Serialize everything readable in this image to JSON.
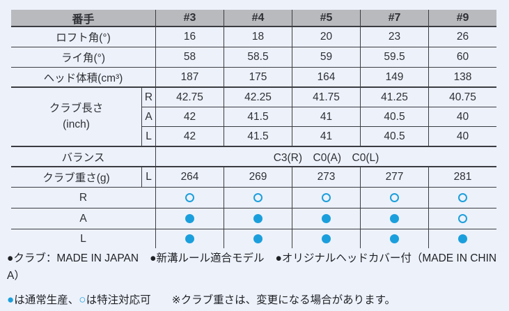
{
  "colors": {
    "page_bg": "#edf1fa",
    "header_bg": "#b9babe",
    "grid_line": "#3a3c41",
    "text": "#2e3035",
    "accent_blue": "#1b9fdc"
  },
  "table": {
    "header": {
      "label": "番手",
      "columns": [
        "#3",
        "#4",
        "#5",
        "#7",
        "#9"
      ]
    },
    "loft": {
      "label": "ロフト角(°)",
      "values": [
        "16",
        "18",
        "20",
        "23",
        "26"
      ]
    },
    "lie": {
      "label": "ライ角(°)",
      "values": [
        "58",
        "58.5",
        "59",
        "59.5",
        "60"
      ]
    },
    "head_volume": {
      "label": "ヘッド体積(cm³)",
      "values": [
        "187",
        "175",
        "164",
        "149",
        "138"
      ]
    },
    "club_length": {
      "label_line1": "クラブ長さ",
      "label_line2": "(inch)",
      "rows": [
        {
          "flex": "R",
          "values": [
            "42.75",
            "42.25",
            "41.75",
            "41.25",
            "40.75"
          ]
        },
        {
          "flex": "A",
          "values": [
            "42",
            "41.5",
            "41",
            "40.5",
            "40"
          ]
        },
        {
          "flex": "L",
          "values": [
            "42",
            "41.5",
            "41",
            "40.5",
            "40"
          ]
        }
      ]
    },
    "balance": {
      "label": "バランス",
      "value": "C3(R)　C0(A)　C0(L)"
    },
    "club_weight": {
      "label": "クラブ重さ(g)",
      "sub_label": "L",
      "values": [
        "264",
        "269",
        "273",
        "277",
        "281"
      ]
    },
    "availability": [
      {
        "flex": "R",
        "marks": [
          "open",
          "open",
          "open",
          "open",
          "open"
        ]
      },
      {
        "flex": "A",
        "marks": [
          "filled",
          "filled",
          "filled",
          "filled",
          "open"
        ]
      },
      {
        "flex": "L",
        "marks": [
          "filled",
          "filled",
          "filled",
          "filled",
          "filled"
        ]
      }
    ]
  },
  "footer": {
    "bullets_line": [
      "●クラブ：MADE IN JAPAN",
      "●新溝ルール適合モデル",
      "●オリジナルヘッドカバー付（MADE IN CHINA）"
    ],
    "legend": {
      "filled_symbol": "●",
      "filled_text": "は通常生産、",
      "open_symbol": "○",
      "open_text": "は特注対応可",
      "note": "※クラブ重さは、変更になる場合があります。"
    }
  }
}
